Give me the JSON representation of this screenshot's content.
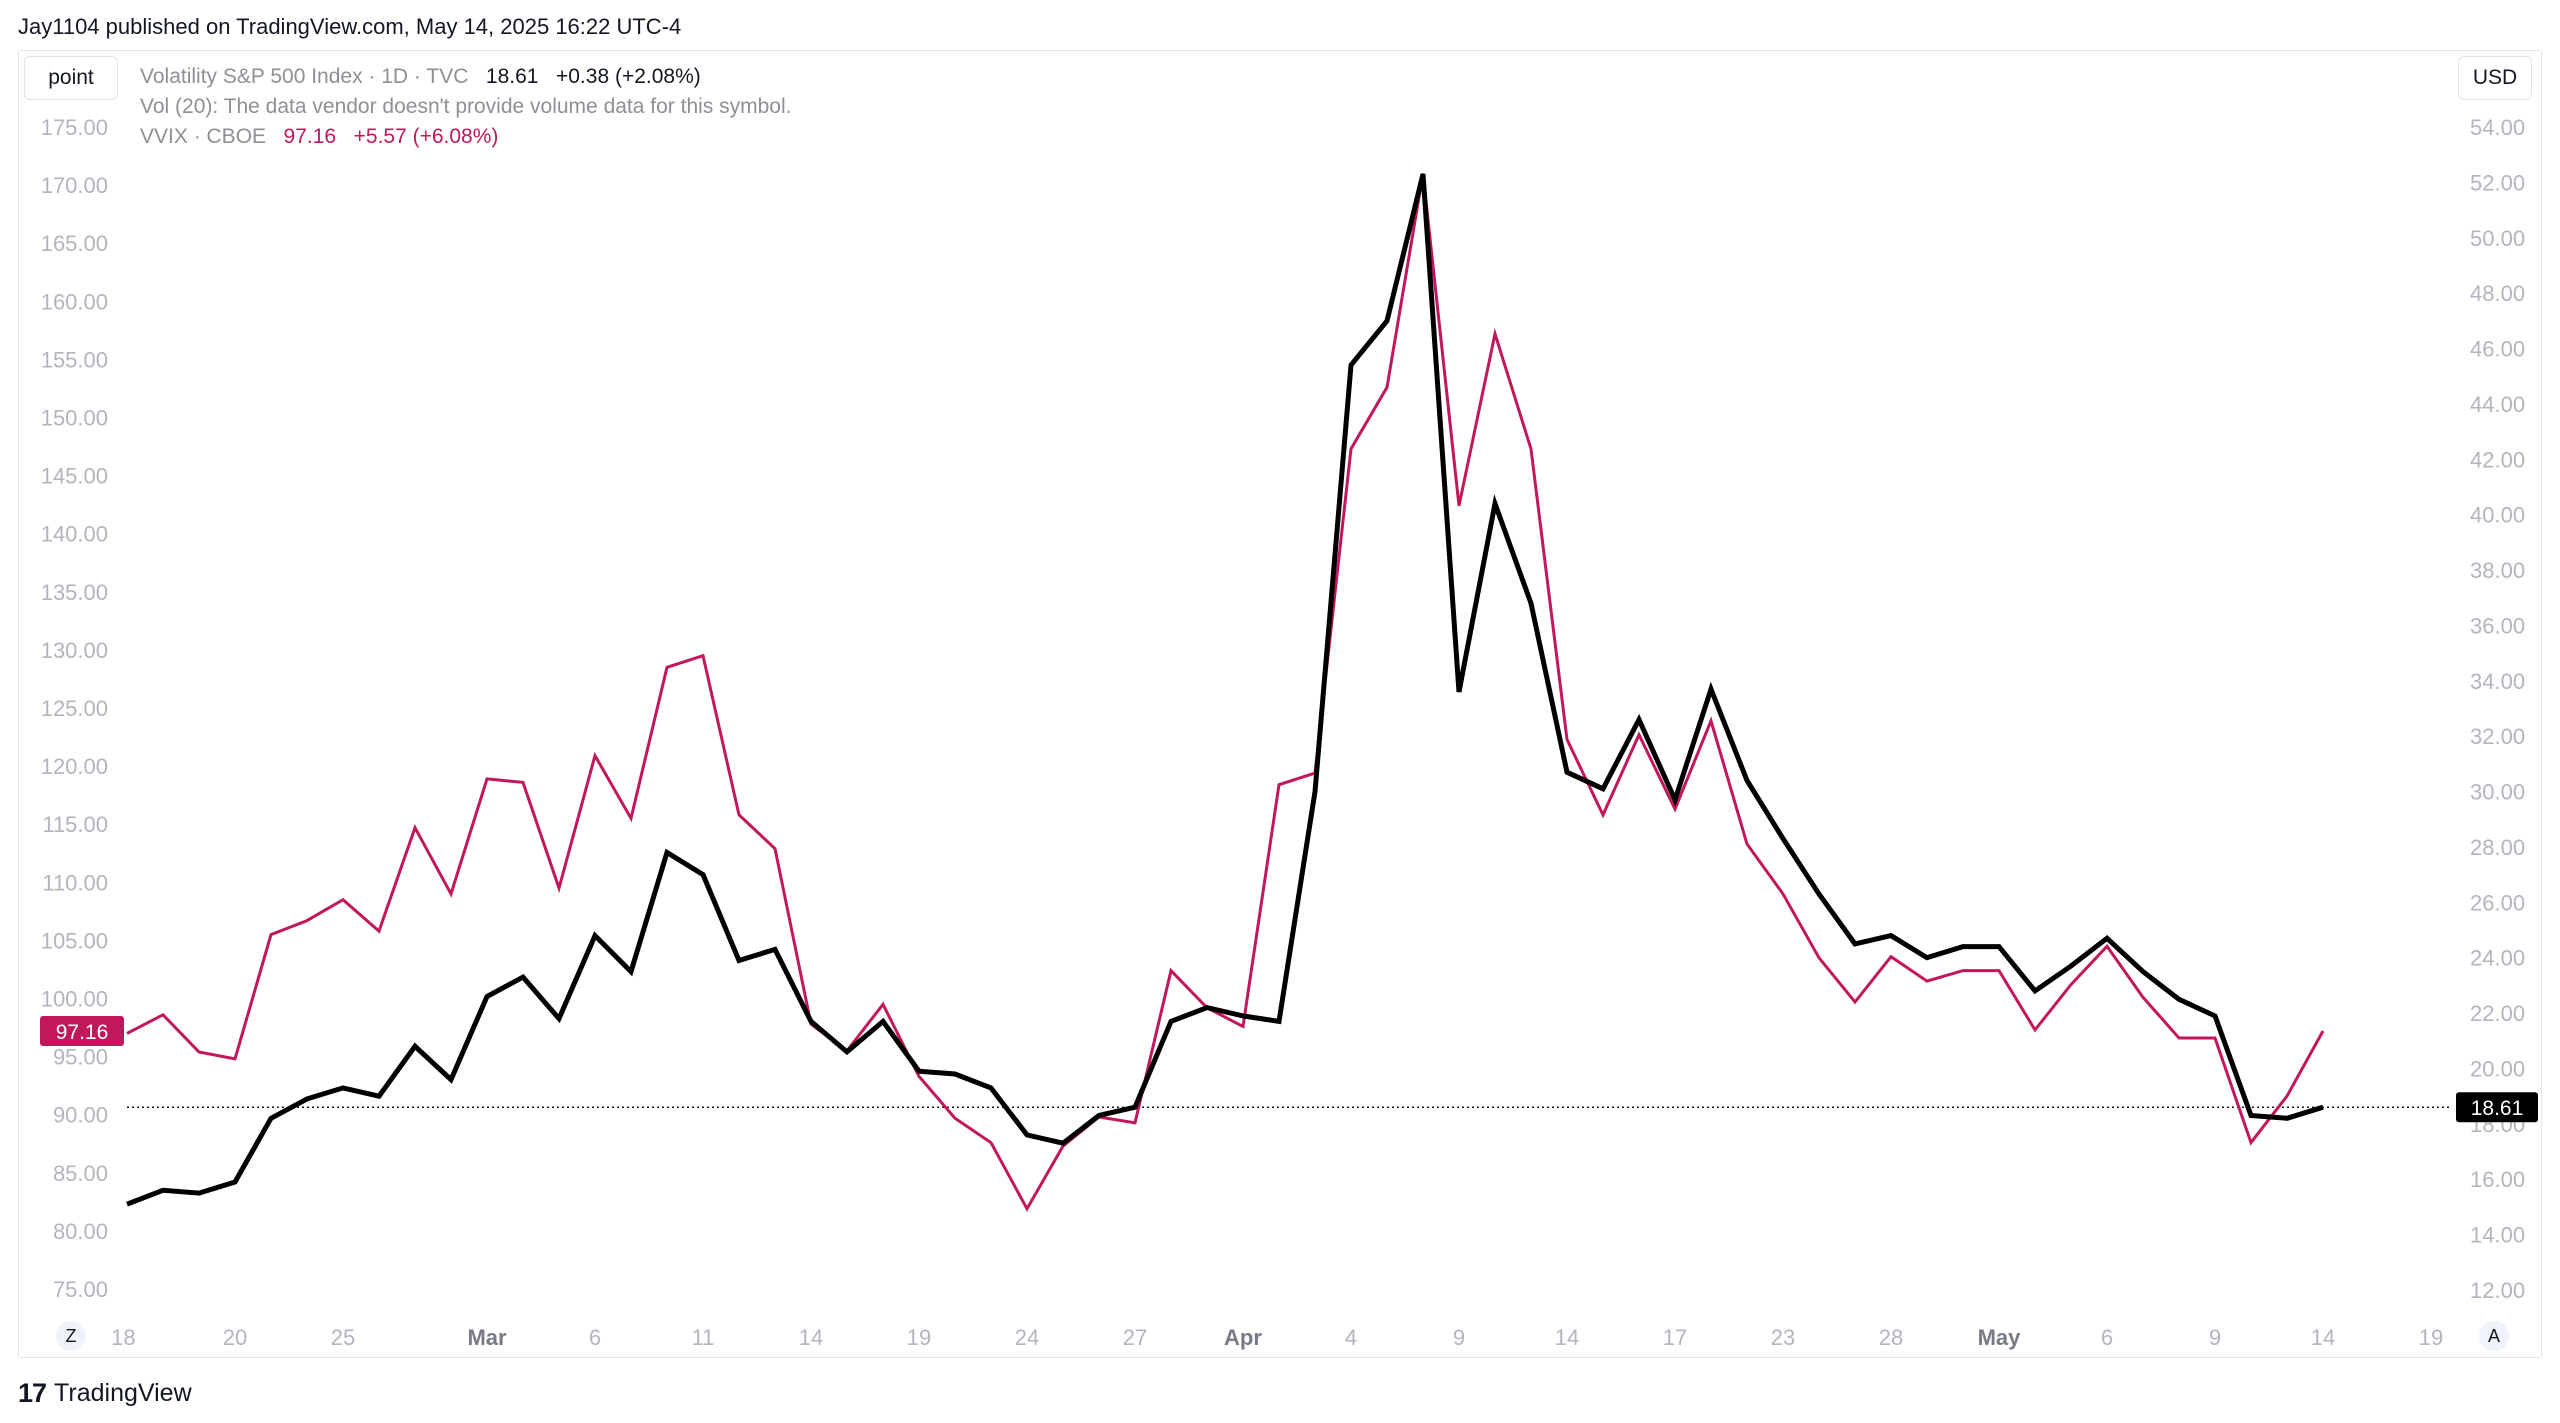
{
  "header": {
    "published": "Jay1104 published on TradingView.com, May 14, 2025 16:22 UTC-4"
  },
  "toolbar": {
    "point_label": "point",
    "currency_label": "USD",
    "z_label": "Z",
    "a_label": "A"
  },
  "legend": {
    "vix_name": "Volatility S&P 500 Index · 1D · TVC",
    "vix_last": "18.61",
    "vix_change": "+0.38 (+2.08%)",
    "vol_note": "Vol (20): The data vendor doesn't provide volume data for this symbol.",
    "vvix_name": "VVIX · CBOE",
    "vvix_last": "97.16",
    "vvix_change": "+5.57 (+6.08%)"
  },
  "footer": {
    "brand": "TradingView"
  },
  "colors": {
    "vix": "#000000",
    "vvix": "#c2185b",
    "grid_text": "#b2b5be"
  },
  "chart_data": {
    "type": "line",
    "x_ticks": [
      "18",
      "20",
      "25",
      "Mar",
      "6",
      "11",
      "14",
      "19",
      "24",
      "27",
      "Apr",
      "4",
      "9",
      "14",
      "17",
      "23",
      "28",
      "May",
      "6",
      "9",
      "14",
      "19"
    ],
    "x_tick_index": [
      -0.1,
      3,
      6,
      10,
      13,
      16,
      19,
      22,
      25,
      28,
      31,
      34,
      37,
      40,
      43,
      46,
      49,
      52,
      55,
      58,
      61,
      64
    ],
    "left_axis": {
      "min": 75,
      "max": 175,
      "step": 5,
      "ticks": [
        "175.00",
        "170.00",
        "165.00",
        "160.00",
        "155.00",
        "150.00",
        "145.00",
        "140.00",
        "135.00",
        "130.00",
        "125.00",
        "120.00",
        "115.00",
        "110.00",
        "105.00",
        "100.00",
        "95.00",
        "90.00",
        "85.00",
        "80.00",
        "75.00"
      ]
    },
    "right_axis": {
      "min": 12,
      "max": 54,
      "step": 2,
      "ticks": [
        "54.00",
        "52.00",
        "50.00",
        "48.00",
        "46.00",
        "44.00",
        "42.00",
        "40.00",
        "38.00",
        "36.00",
        "34.00",
        "32.00",
        "30.00",
        "28.00",
        "26.00",
        "24.00",
        "22.00",
        "20.00",
        "18.00",
        "16.00",
        "14.00",
        "12.00"
      ]
    },
    "series": [
      {
        "name": "VVIX · CBOE",
        "axis": "left",
        "last_label": "97.16",
        "values": [
          97.0,
          98.6,
          95.4,
          94.8,
          105.5,
          106.7,
          108.5,
          105.8,
          114.7,
          109.0,
          118.9,
          118.6,
          109.5,
          120.9,
          115.5,
          128.5,
          129.5,
          115.8,
          112.9,
          97.8,
          95.5,
          99.5,
          93.3,
          89.7,
          87.6,
          81.9,
          87.3,
          89.8,
          89.3,
          102.4,
          99.2,
          97.6,
          118.4,
          119.4,
          147.3,
          152.6,
          171.0,
          142.4,
          157.2,
          147.3,
          122.3,
          115.8,
          122.7,
          116.3,
          123.9,
          113.3,
          109.0,
          103.5,
          99.7,
          103.6,
          101.5,
          102.4,
          102.4,
          97.3,
          101.2,
          104.5,
          100.1,
          96.6,
          96.6,
          87.6,
          91.6,
          97.2
        ]
      },
      {
        "name": "Volatility S&P 500 Index · 1D · TVC",
        "axis": "right",
        "last_label": "18.61",
        "values": [
          15.1,
          15.6,
          15.5,
          15.9,
          18.2,
          18.9,
          19.3,
          19.0,
          20.8,
          19.6,
          22.6,
          23.3,
          21.8,
          24.8,
          23.5,
          27.8,
          27.0,
          23.9,
          24.3,
          21.7,
          20.6,
          21.7,
          19.9,
          19.8,
          19.3,
          17.6,
          17.3,
          18.3,
          18.6,
          21.7,
          22.2,
          21.9,
          21.7,
          30.0,
          45.4,
          47.0,
          52.3,
          33.6,
          40.4,
          36.8,
          30.7,
          30.1,
          32.6,
          29.7,
          33.7,
          30.4,
          28.3,
          26.3,
          24.5,
          24.8,
          24.0,
          24.4,
          24.4,
          22.8,
          23.7,
          24.7,
          23.5,
          22.5,
          21.9,
          18.3,
          18.2,
          18.6
        ]
      }
    ]
  }
}
